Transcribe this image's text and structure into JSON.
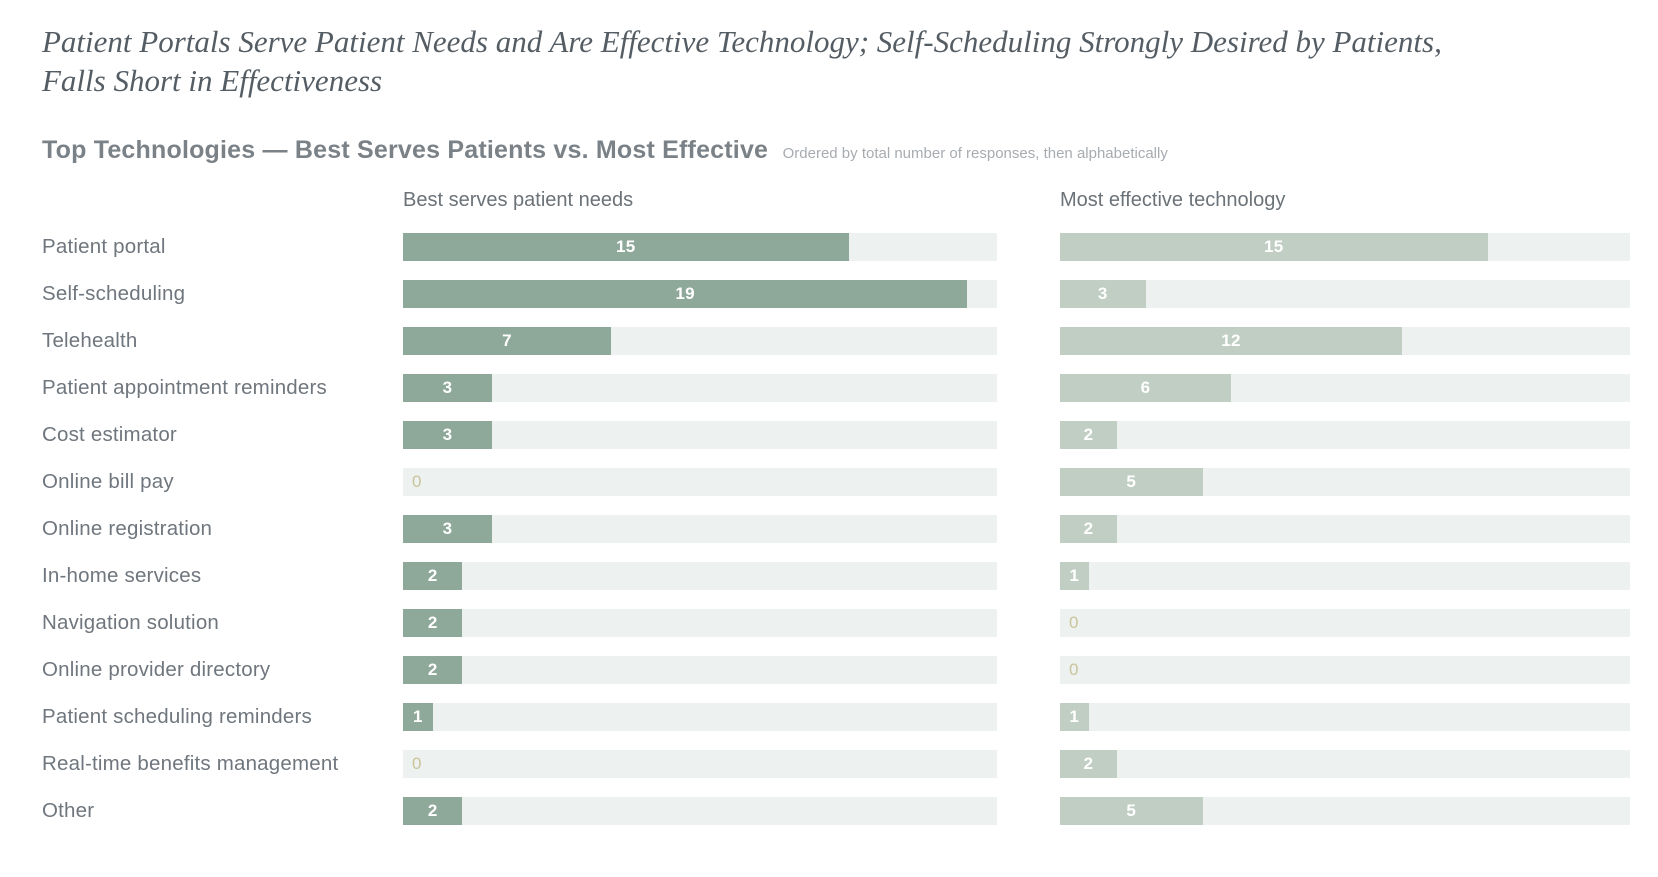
{
  "title": "Patient Portals Serve Patient Needs and Are Effective Technology; Self-Scheduling Strongly Desired by Patients, Falls Short in Effectiveness",
  "section": {
    "heading": "Top Technologies — Best Serves Patients vs. Most Effective",
    "note": "Ordered by total number of responses, then alphabetically"
  },
  "chart_data": {
    "type": "bar",
    "orientation": "horizontal",
    "title": "Top Technologies — Best Serves Patients vs. Most Effective",
    "ordering_note": "Ordered by total number of responses, then alphabetically",
    "categories": [
      "Patient portal",
      "Self-scheduling",
      "Telehealth",
      "Patient appointment reminders",
      "Cost estimator",
      "Online bill pay",
      "Online registration",
      "In-home services",
      "Navigation solution",
      "Online provider directory",
      "Patient scheduling reminders",
      "Real-time benefits management",
      "Other"
    ],
    "series": [
      {
        "name": "Best serves patient needs",
        "values": [
          15,
          19,
          7,
          3,
          3,
          0,
          3,
          2,
          2,
          2,
          1,
          0,
          2
        ]
      },
      {
        "name": "Most effective technology",
        "values": [
          15,
          3,
          12,
          6,
          2,
          5,
          2,
          1,
          0,
          0,
          1,
          2,
          5
        ]
      }
    ],
    "xlim": [
      0,
      20
    ],
    "grid": false,
    "legend_position": "column headers above each bar group",
    "colors": {
      "series1_fill": "#8ea89a",
      "series2_fill": "#c1cec4",
      "track": "#edf1ef",
      "value_label": "#ffffff",
      "zero_label": "#c9c49c",
      "category_label": "#6f767d",
      "column_header": "#6b7278",
      "heading": "#7a8187",
      "note": "#a7acb1",
      "title": "#555d64"
    }
  }
}
